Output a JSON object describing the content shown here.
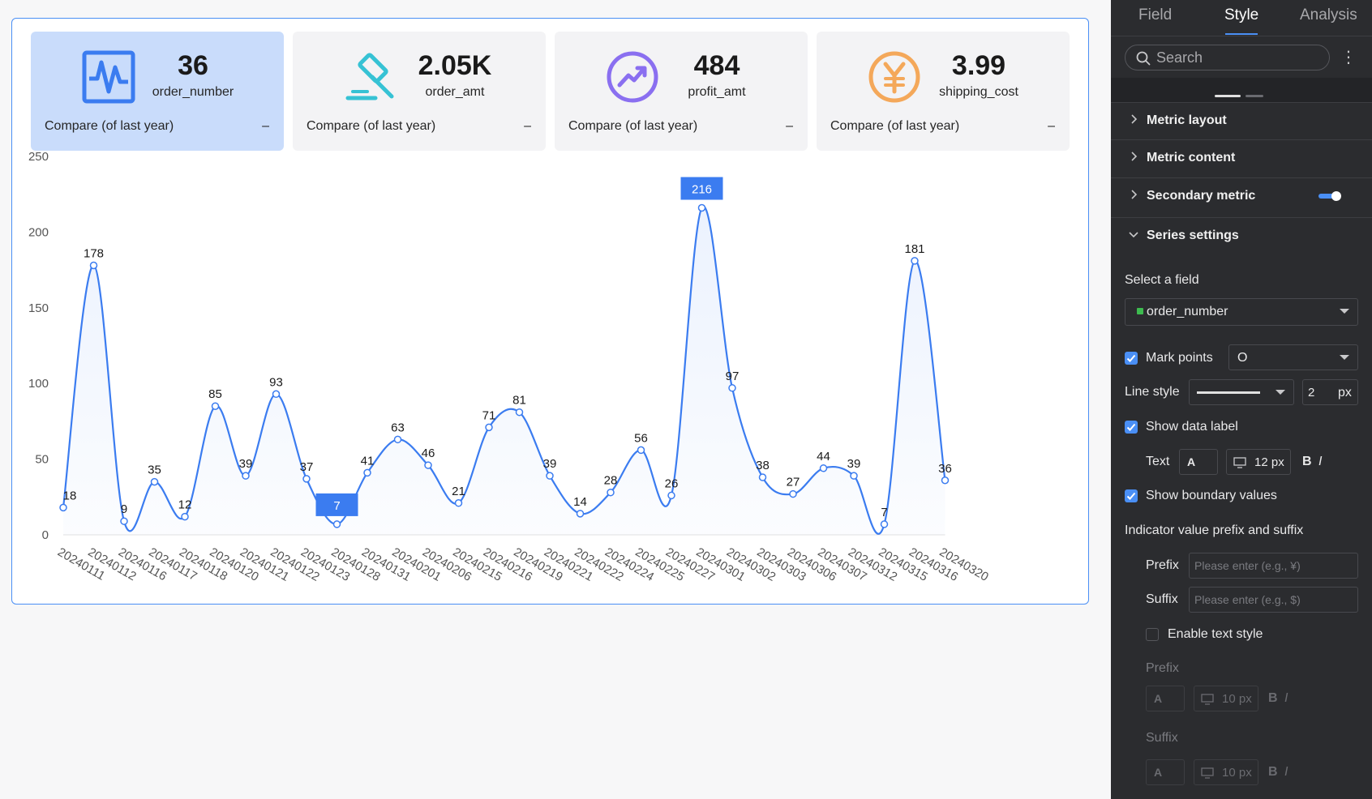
{
  "cards": [
    {
      "value": "36",
      "name": "order_number",
      "compare": "Compare (of last year)",
      "dash": "–",
      "icon": "pulse-icon",
      "color": "#3b7cf0"
    },
    {
      "value": "2.05K",
      "name": "order_amt",
      "compare": "Compare (of last year)",
      "dash": "–",
      "icon": "gavel-icon",
      "color": "#36c2d4"
    },
    {
      "value": "484",
      "name": "profit_amt",
      "compare": "Compare (of last year)",
      "dash": "–",
      "icon": "trend-up-icon",
      "color": "#8a6ff0"
    },
    {
      "value": "3.99",
      "name": "shipping_cost",
      "compare": "Compare (of last year)",
      "dash": "–",
      "icon": "yen-icon",
      "color": "#f4a85a"
    }
  ],
  "chart_data": {
    "type": "line",
    "smooth": true,
    "area": true,
    "categories": [
      "20240111",
      "20240112",
      "20240116",
      "20240117",
      "20240118",
      "20240120",
      "20240121",
      "20240122",
      "20240123",
      "20240128",
      "20240131",
      "20240201",
      "20240206",
      "20240215",
      "20240216",
      "20240219",
      "20240221",
      "20240222",
      "20240224",
      "20240225",
      "20240227",
      "20240301",
      "20240302",
      "20240303",
      "20240306",
      "20240307",
      "20240312",
      "20240315",
      "20240316",
      "20240320"
    ],
    "values": [
      18,
      178,
      9,
      35,
      12,
      85,
      39,
      93,
      37,
      7,
      41,
      63,
      46,
      21,
      71,
      81,
      39,
      14,
      28,
      56,
      26,
      216,
      97,
      38,
      27,
      44,
      39,
      7,
      181,
      36
    ],
    "series": [
      {
        "name": "order_number",
        "values": [
          18,
          178,
          9,
          35,
          12,
          85,
          39,
          93,
          37,
          7,
          41,
          63,
          46,
          21,
          71,
          81,
          39,
          14,
          28,
          56,
          26,
          216,
          97,
          38,
          27,
          44,
          39,
          7,
          181,
          36
        ]
      }
    ],
    "y_ticks": [
      "0",
      "50",
      "100",
      "150",
      "200",
      "250"
    ],
    "ylim": [
      0,
      250
    ],
    "highlight_max_label": "216",
    "highlight_min_label": "7",
    "line_color": "#3b7cf0",
    "grid": false
  },
  "panel": {
    "tabs": {
      "field": "Field",
      "style": "Style",
      "analysis": "Analysis"
    },
    "search_placeholder": "Search",
    "more": "⋮",
    "sections": {
      "metric_layout": "Metric layout",
      "metric_content": "Metric content",
      "secondary_metric": "Secondary metric",
      "series_settings": "Series settings"
    },
    "select_field_label": "Select a field",
    "selected_field": "order_number",
    "mark_points_label": "Mark points",
    "mark_points_value": "O",
    "line_style_label": "Line style",
    "line_width": "2",
    "px": "px",
    "show_data_label": "Show data label",
    "text_label": "Text",
    "font_a": "A",
    "font_size": "12 px",
    "bold": "B",
    "italic": "I",
    "show_boundary_values": "Show boundary values",
    "prefix_suffix_title": "Indicator value prefix and suffix",
    "prefix_label": "Prefix",
    "prefix_placeholder": "Please enter (e.g., ¥)",
    "suffix_label": "Suffix",
    "suffix_placeholder": "Please enter (e.g., $)",
    "enable_text_style": "Enable text style",
    "prefix_sub_label": "Prefix",
    "suffix_sub_label": "Suffix",
    "sub_font_size": "10 px",
    "accent": "#4a8ff5"
  }
}
